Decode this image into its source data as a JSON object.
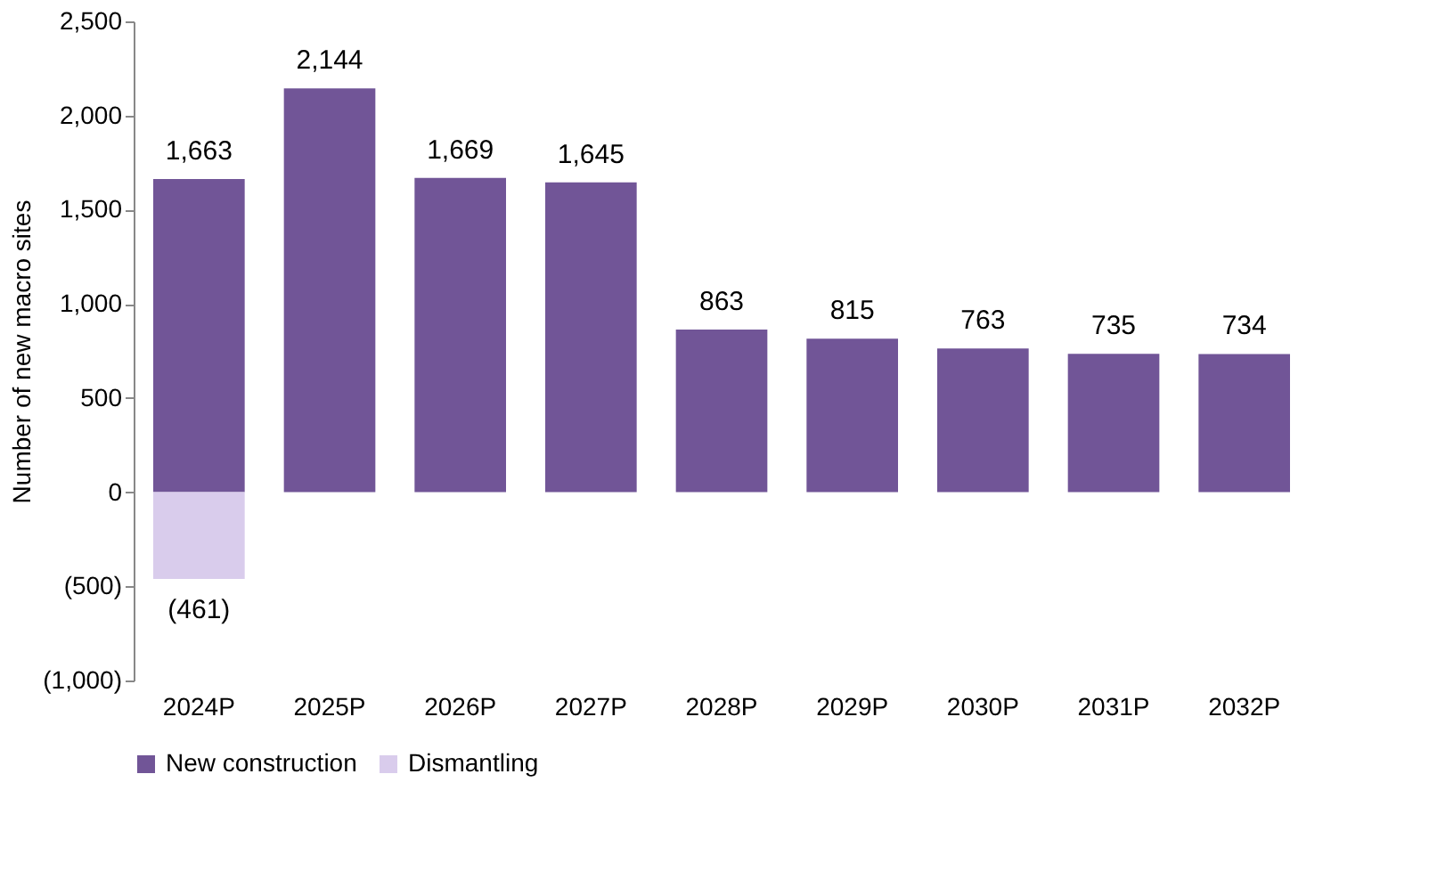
{
  "chart_data": {
    "type": "bar",
    "ylabel": "Number of new macro sites",
    "categories": [
      "2024P",
      "2025P",
      "2026P",
      "2027P",
      "2028P",
      "2029P",
      "2030P",
      "2031P",
      "2032P"
    ],
    "series": [
      {
        "name": "New construction",
        "color": "#715597",
        "values": [
          1663,
          2144,
          1669,
          1645,
          863,
          815,
          763,
          735,
          734
        ],
        "value_labels": [
          "1,663",
          "2,144",
          "1,669",
          "1,645",
          "863",
          "815",
          "763",
          "735",
          "734"
        ]
      },
      {
        "name": "Dismantling",
        "color": "#d9ccec",
        "values": [
          -461,
          null,
          null,
          null,
          null,
          null,
          null,
          null,
          null
        ],
        "value_labels": [
          "(461)",
          null,
          null,
          null,
          null,
          null,
          null,
          null,
          null
        ]
      }
    ],
    "ylim": [
      -1000,
      2500
    ],
    "yticks": [
      {
        "value": -1000,
        "label": "(1,000)"
      },
      {
        "value": -500,
        "label": "(500)"
      },
      0,
      {
        "value": 500,
        "label": "500"
      },
      {
        "value": 1000,
        "label": "1,000"
      },
      {
        "value": 1500,
        "label": "1,500"
      },
      {
        "value": 2000,
        "label": "2,000"
      },
      {
        "value": 2500,
        "label": "2,500"
      }
    ],
    "grid": false,
    "legend": "bottom"
  }
}
